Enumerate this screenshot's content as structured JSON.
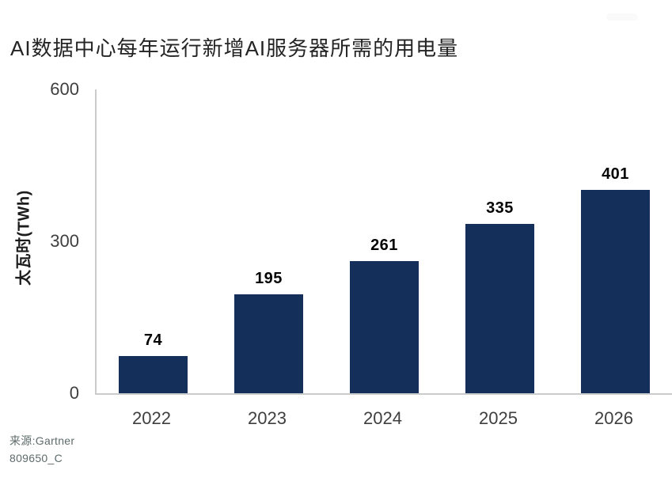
{
  "title": "AI数据中心每年运行新增AI服务器所需的用电量",
  "source": {
    "line1": "来源:Gartner",
    "line2": "809650_C"
  },
  "colors": {
    "bar": "#132f5a",
    "axis_line": "#c9cbcc",
    "title_text": "#242424",
    "tick_text": "#3f3f3f",
    "value_text": "#050505",
    "source_text": "#5e6b6b"
  },
  "chart_data": {
    "type": "bar",
    "title": "AI数据中心每年运行新增AI服务器所需的用电量",
    "categories": [
      "2022",
      "2023",
      "2024",
      "2025",
      "2026"
    ],
    "values": [
      74,
      195,
      261,
      335,
      401
    ],
    "xlabel": "",
    "ylabel": "太瓦时(TWh)",
    "ylim": [
      0,
      600
    ],
    "yticks": [
      0,
      300,
      600
    ],
    "grid": false,
    "legend": "none",
    "data_labels": true,
    "bar_color": "#132f5a",
    "source": "来源:Gartner",
    "footnote": "809650_C"
  }
}
